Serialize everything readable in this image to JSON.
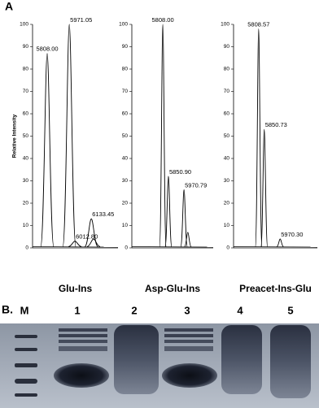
{
  "panel_a": {
    "label": "A"
  },
  "chart_data": [
    {
      "type": "line",
      "ylabel": "Relative Intensity",
      "xlabel": "Glu-Ins",
      "x": [
        5808.0,
        5971.05,
        6012.8,
        6133.45,
        6150
      ],
      "x_labels": [
        "5808.00",
        "5971.05",
        "6012.80",
        "6133.45",
        null
      ],
      "values": [
        87,
        100,
        3,
        13,
        4
      ],
      "xlim": [
        5700,
        6330
      ],
      "ylim": [
        0,
        100
      ],
      "yticks": [
        0,
        10,
        20,
        30,
        40,
        50,
        60,
        70,
        80,
        90,
        100
      ],
      "color": "#000000"
    },
    {
      "type": "line",
      "xlabel": "Asp-Glu-Ins",
      "x": [
        5808.0,
        5850.9,
        5970.79,
        6000
      ],
      "x_labels": [
        "5808.00",
        "5850.90",
        "5970.79",
        null
      ],
      "values": [
        100,
        32,
        26,
        7
      ],
      "xlim": [
        5570,
        6195
      ],
      "ylim": [
        0,
        100
      ],
      "yticks": [
        0,
        10,
        20,
        30,
        40,
        50,
        60,
        70,
        80,
        90,
        100
      ],
      "color": "#000000"
    },
    {
      "type": "line",
      "xlabel": "Preacet-Ins-Glu",
      "x": [
        5808.57,
        5850.73,
        5970.3
      ],
      "x_labels": [
        "5808.57",
        "5850.73",
        "5970.30"
      ],
      "values": [
        98,
        53,
        4
      ],
      "xlim": [
        5620,
        6250
      ],
      "ylim": [
        0,
        100
      ],
      "yticks": [
        0,
        10,
        20,
        30,
        40,
        50,
        60,
        70,
        80,
        90,
        100
      ],
      "color": "#000000"
    }
  ],
  "gel": {
    "label": "B.",
    "lanes": [
      "M",
      "1",
      "2",
      "3",
      "4",
      "5"
    ]
  }
}
